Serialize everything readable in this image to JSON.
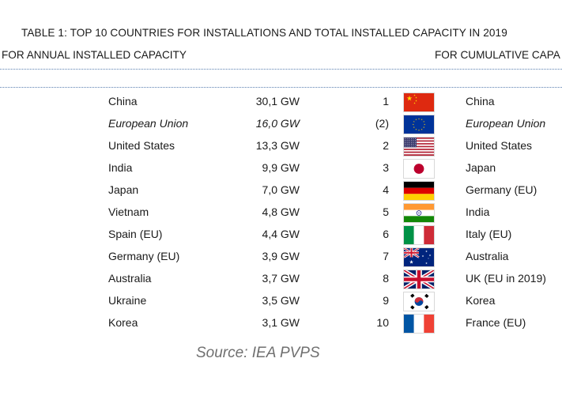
{
  "title": "TABLE 1: TOP 10 COUNTRIES FOR INSTALLATIONS AND TOTAL INSTALLED CAPACITY IN 2019",
  "left_header": "FOR ANNUAL INSTALLED CAPACITY",
  "right_header": "FOR CUMULATIVE CAPA",
  "rows": [
    {
      "annual_country": "China",
      "annual_value": "30,1 GW",
      "rank": "1",
      "flag": "china-flag-icon",
      "cumulative_country": "China"
    },
    {
      "annual_country": "European Union",
      "annual_value": "16,0 GW",
      "rank": "(2)",
      "flag": "eu-flag-icon",
      "cumulative_country": "European Union"
    },
    {
      "annual_country": "United States",
      "annual_value": "13,3 GW",
      "rank": "2",
      "flag": "usa-flag-icon",
      "cumulative_country": "United States"
    },
    {
      "annual_country": "India",
      "annual_value": "9,9 GW",
      "rank": "3",
      "flag": "japan-flag-icon",
      "cumulative_country": "Japan"
    },
    {
      "annual_country": "Japan",
      "annual_value": "7,0 GW",
      "rank": "4",
      "flag": "germany-flag-icon",
      "cumulative_country": "Germany (EU)"
    },
    {
      "annual_country": "Vietnam",
      "annual_value": "4,8 GW",
      "rank": "5",
      "flag": "india-flag-icon",
      "cumulative_country": "India"
    },
    {
      "annual_country": "Spain (EU)",
      "annual_value": "4,4 GW",
      "rank": "6",
      "flag": "italy-flag-icon",
      "cumulative_country": "Italy (EU)"
    },
    {
      "annual_country": "Germany (EU)",
      "annual_value": "3,9 GW",
      "rank": "7",
      "flag": "australia-flag-icon",
      "cumulative_country": "Australia"
    },
    {
      "annual_country": "Australia",
      "annual_value": "3,7 GW",
      "rank": "8",
      "flag": "uk-flag-icon",
      "cumulative_country": "UK (EU in 2019)"
    },
    {
      "annual_country": "Ukraine",
      "annual_value": "3,5 GW",
      "rank": "9",
      "flag": "korea-flag-icon",
      "cumulative_country": "Korea"
    },
    {
      "annual_country": "Korea",
      "annual_value": "3,1 GW",
      "rank": "10",
      "flag": "france-flag-icon",
      "cumulative_country": "France (EU)"
    }
  ],
  "source": "Source: IEA PVPS"
}
